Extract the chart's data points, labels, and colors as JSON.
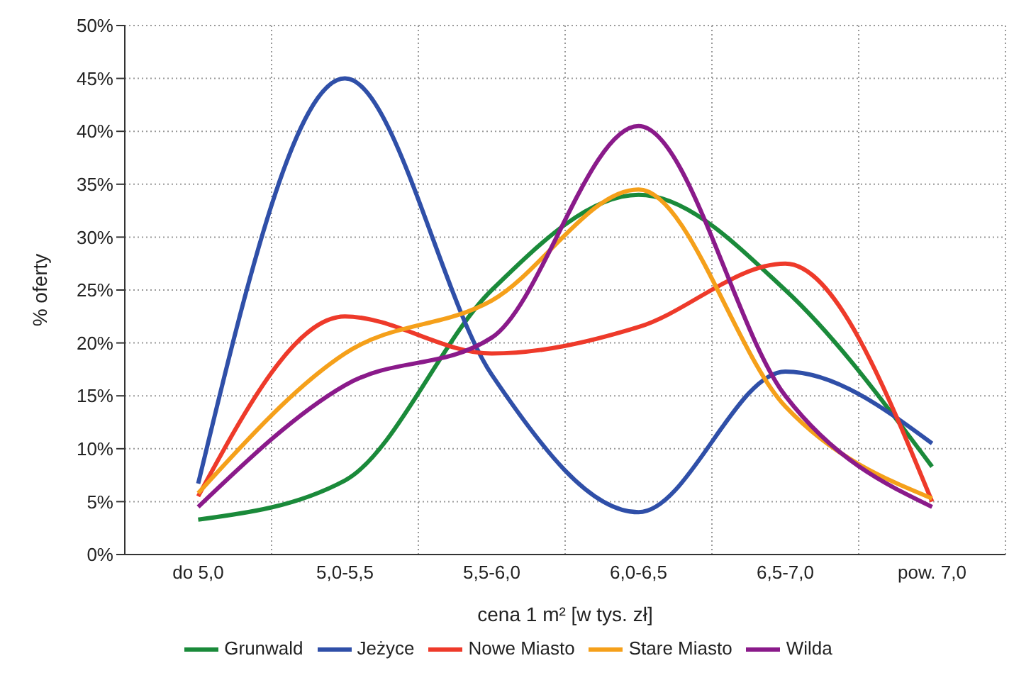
{
  "chart_data": {
    "type": "line",
    "xlabel": "cena 1 m² [w tys. zł]",
    "ylabel": "% oferty",
    "categories": [
      "do 5,0",
      "5,0-5,5",
      "5,5-6,0",
      "6,0-6,5",
      "6,5-7,0",
      "pow. 7,0"
    ],
    "series": [
      {
        "name": "Grunwald",
        "color": "#1a8a3a",
        "values": [
          3.3,
          7,
          25,
          34,
          25,
          8.3
        ]
      },
      {
        "name": "Jeżyce",
        "color": "#2f4fa8",
        "values": [
          6.7,
          45,
          17,
          4,
          17.3,
          10.5
        ]
      },
      {
        "name": "Nowe Miasto",
        "color": "#ee3a2a",
        "values": [
          5.5,
          22.5,
          19,
          21.5,
          27.5,
          5
        ]
      },
      {
        "name": "Stare Miasto",
        "color": "#f5a01a",
        "values": [
          5.8,
          19,
          24,
          34.5,
          14,
          5.3
        ]
      },
      {
        "name": "Wilda",
        "color": "#8a1a8a",
        "values": [
          4.5,
          16,
          20.5,
          40.5,
          15,
          4.5
        ]
      }
    ],
    "ylim": [
      0,
      50
    ],
    "yticks": [
      {
        "value": 0,
        "label": "0%"
      },
      {
        "value": 5,
        "label": "5%"
      },
      {
        "value": 10,
        "label": "10%"
      },
      {
        "value": 15,
        "label": "15%"
      },
      {
        "value": 20,
        "label": "20%"
      },
      {
        "value": 25,
        "label": "25%"
      },
      {
        "value": 30,
        "label": "30%"
      },
      {
        "value": 35,
        "label": "35%"
      },
      {
        "value": 40,
        "label": "40%"
      },
      {
        "value": 45,
        "label": "45%"
      },
      {
        "value": 50,
        "label": "50%"
      }
    ],
    "grid": true,
    "legend": "bottom",
    "marker": "none",
    "line_style": "solid"
  }
}
